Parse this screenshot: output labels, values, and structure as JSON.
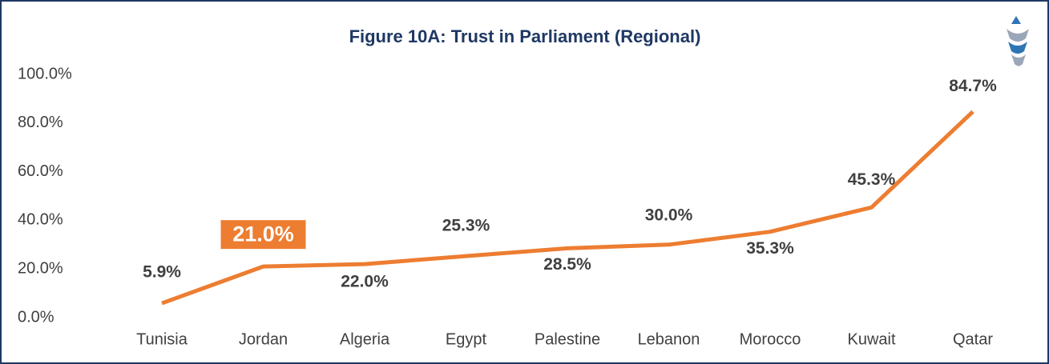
{
  "chart_data": {
    "type": "line",
    "title": "Figure 10A: Trust in Parliament (Regional)",
    "categories": [
      "Tunisia",
      "Jordan",
      "Algeria",
      "Egypt",
      "Palestine",
      "Lebanon",
      "Morocco",
      "Kuwait",
      "Qatar"
    ],
    "series": [
      {
        "name": "Trust in Parliament",
        "color": "#ed7d31",
        "values": [
          5.9,
          21.0,
          22.0,
          25.3,
          28.5,
          30.0,
          35.3,
          45.3,
          84.7
        ],
        "value_labels": [
          "5.9%",
          "21.0%",
          "22.0%",
          "25.3%",
          "28.5%",
          "30.0%",
          "35.3%",
          "45.3%",
          "84.7%"
        ]
      }
    ],
    "ylim": [
      0,
      100
    ],
    "yticks": [
      {
        "value": 0,
        "label": "0.0%"
      },
      {
        "value": 20,
        "label": "20.0%"
      },
      {
        "value": 40,
        "label": "40.0%"
      },
      {
        "value": 60,
        "label": "60.0%"
      },
      {
        "value": 80,
        "label": "80.0%"
      },
      {
        "value": 100,
        "label": "100.0%"
      }
    ],
    "grid": false
  }
}
